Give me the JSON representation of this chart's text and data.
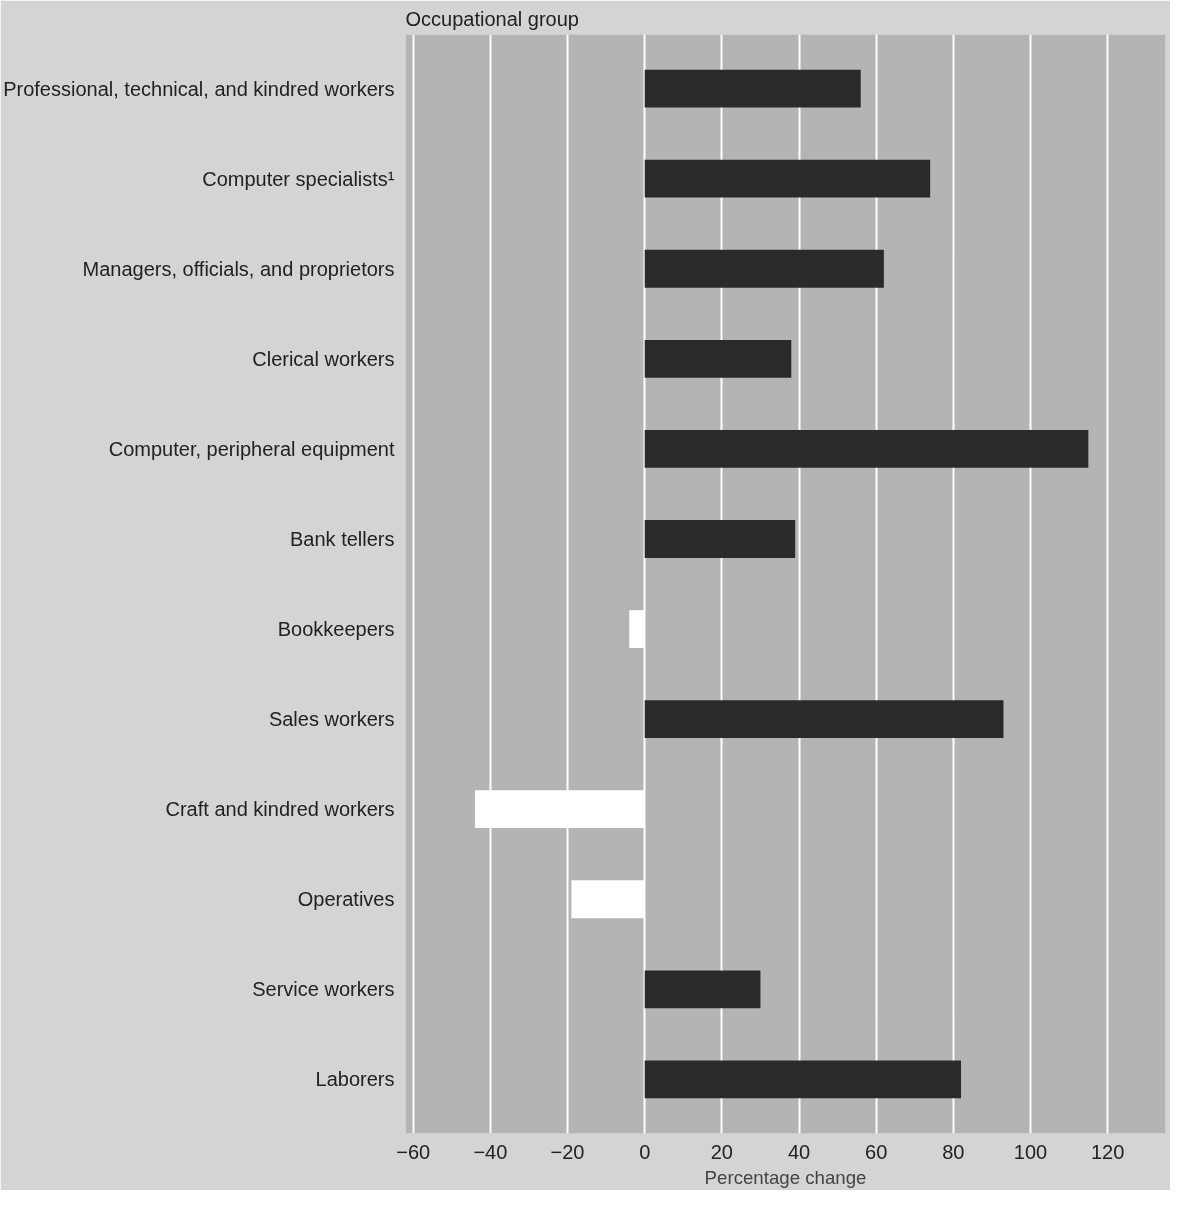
{
  "chart_data": {
    "type": "bar",
    "orientation": "horizontal",
    "title": "Occupational group",
    "xlabel": "Percentage change",
    "categories": [
      "Professional, technical, and kindred workers",
      "Computer specialists¹",
      "Managers, officials, and proprietors",
      "Clerical workers",
      "Computer, peripheral equipment",
      "Bank tellers",
      "Bookkeepers",
      "Sales workers",
      "Craft and kindred workers",
      "Operatives",
      "Service workers",
      "Laborers"
    ],
    "values": [
      56,
      74,
      62,
      38,
      115,
      39,
      -4,
      93,
      -44,
      -19,
      30,
      82
    ],
    "colors": [
      "#2a2a2a",
      "#2a2a2a",
      "#2a2a2a",
      "#2a2a2a",
      "#2a2a2a",
      "#2a2a2a",
      "#ffffff",
      "#2a2a2a",
      "#ffffff",
      "#ffffff",
      "#2a2a2a",
      "#2a2a2a"
    ],
    "xlim": [
      -62,
      135
    ],
    "xticks": [
      -60,
      -40,
      -20,
      0,
      20,
      40,
      60,
      80,
      100,
      120
    ],
    "grid": "x"
  }
}
